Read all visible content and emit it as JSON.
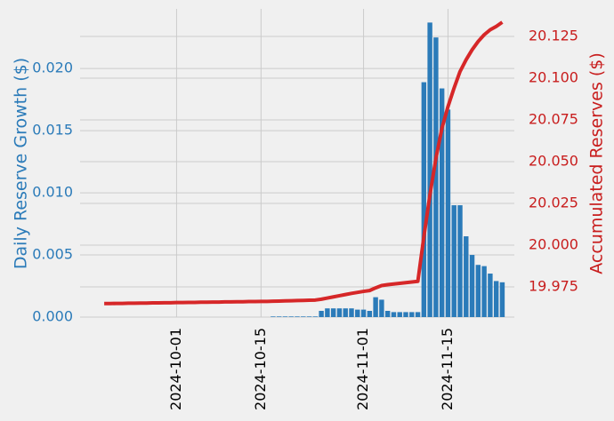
{
  "chart_data": {
    "type": "bar-line",
    "x": [
      "2024-09-19",
      "2024-09-20",
      "2024-09-21",
      "2024-09-22",
      "2024-09-23",
      "2024-09-24",
      "2024-09-25",
      "2024-09-26",
      "2024-09-27",
      "2024-09-28",
      "2024-09-29",
      "2024-09-30",
      "2024-10-01",
      "2024-10-02",
      "2024-10-03",
      "2024-10-04",
      "2024-10-05",
      "2024-10-06",
      "2024-10-07",
      "2024-10-08",
      "2024-10-09",
      "2024-10-10",
      "2024-10-11",
      "2024-10-12",
      "2024-10-13",
      "2024-10-14",
      "2024-10-15",
      "2024-10-16",
      "2024-10-17",
      "2024-10-18",
      "2024-10-19",
      "2024-10-20",
      "2024-10-21",
      "2024-10-22",
      "2024-10-23",
      "2024-10-24",
      "2024-10-25",
      "2024-10-26",
      "2024-10-27",
      "2024-10-28",
      "2024-10-29",
      "2024-10-30",
      "2024-10-31",
      "2024-11-01",
      "2024-11-02",
      "2024-11-03",
      "2024-11-04",
      "2024-11-05",
      "2024-11-06",
      "2024-11-07",
      "2024-11-08",
      "2024-11-09",
      "2024-11-10",
      "2024-11-11",
      "2024-11-12",
      "2024-11-13",
      "2024-11-14",
      "2024-11-15",
      "2024-11-16",
      "2024-11-17",
      "2024-11-18",
      "2024-11-19",
      "2024-11-20",
      "2024-11-21",
      "2024-11-22",
      "2024-11-23",
      "2024-11-24"
    ],
    "series": [
      {
        "name": "Daily Reserve Growth ($)",
        "type": "bar",
        "axis": "y",
        "color": "#2b7bb9",
        "values": [
          0,
          0,
          0,
          0,
          0,
          0,
          0,
          0,
          0,
          0,
          0,
          0,
          0,
          0,
          0,
          0,
          0,
          0,
          0,
          0,
          0,
          0,
          0,
          0,
          0,
          0,
          0,
          0,
          5e-05,
          5e-05,
          5e-05,
          5e-05,
          5e-05,
          5e-05,
          5e-05,
          5e-05,
          0.0005,
          0.0007,
          0.0007,
          0.0007,
          0.0007,
          0.0007,
          0.0006,
          0.0006,
          0.0005,
          0.0016,
          0.0014,
          0.0005,
          0.0004,
          0.0004,
          0.0004,
          0.0004,
          0.0004,
          0.0189,
          0.0237,
          0.0225,
          0.0184,
          0.0167,
          0.009,
          0.009,
          0.0065,
          0.005,
          0.0042,
          0.0041,
          0.0035,
          0.0029,
          0.0028
        ]
      },
      {
        "name": "Accumulated Reserves ($)",
        "type": "line",
        "axis": "y2",
        "color": "#d62728",
        "values": [
          19.965,
          19.965,
          19.9651,
          19.9651,
          19.9652,
          19.9652,
          19.9653,
          19.9653,
          19.9654,
          19.9654,
          19.9655,
          19.9655,
          19.9656,
          19.9656,
          19.9657,
          19.9657,
          19.9658,
          19.9658,
          19.9659,
          19.9659,
          19.966,
          19.966,
          19.9661,
          19.9661,
          19.9662,
          19.9662,
          19.9663,
          19.9663,
          19.9664,
          19.9665,
          19.9666,
          19.9667,
          19.9668,
          19.9669,
          19.967,
          19.9671,
          19.9676,
          19.9683,
          19.969,
          19.9697,
          19.9704,
          19.9711,
          19.9717,
          19.9723,
          19.9728,
          19.9744,
          19.9758,
          19.9763,
          19.9767,
          19.9771,
          19.9775,
          19.9779,
          19.9783,
          20.005,
          20.03,
          20.052,
          20.07,
          20.083,
          20.094,
          20.104,
          20.111,
          20.117,
          20.122,
          20.126,
          20.129,
          20.131,
          20.1335
        ]
      }
    ],
    "xlim": [
      "2024-09-15",
      "2024-11-26"
    ],
    "xticks": [
      "2024-10-01",
      "2024-10-15",
      "2024-11-01",
      "2024-11-15"
    ],
    "ylim": [
      0,
      0.0248
    ],
    "yticks": [
      {
        "value": 0,
        "label": "0.000"
      },
      0.005,
      {
        "value": 0.01,
        "label": "0.010"
      },
      0.015,
      {
        "value": 0.02,
        "label": "0.020"
      }
    ],
    "y2lim": [
      19.9569,
      20.1415
    ],
    "y2ticks": [
      19.975,
      {
        "value": 20,
        "label": "20.000"
      },
      20.025,
      {
        "value": 20.05,
        "label": "20.050"
      },
      20.075,
      {
        "value": 20.1,
        "label": "20.100"
      },
      20.125
    ],
    "ylabel": "Daily Reserve Growth ($)",
    "y2label": "Accumulated Reserves ($)",
    "grid": true
  }
}
